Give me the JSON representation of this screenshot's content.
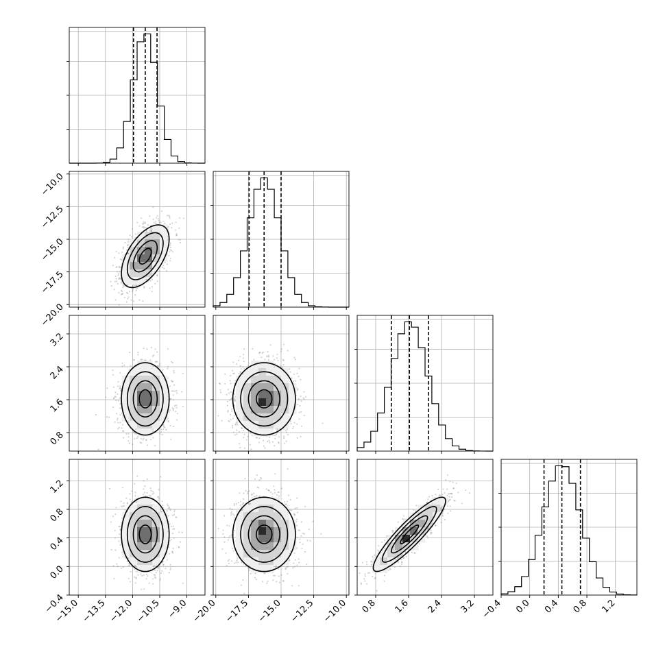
{
  "chart_data": {
    "type": "corner",
    "quantiles": [
      0.16,
      0.5,
      0.84
    ],
    "grid": true,
    "parameters": [
      {
        "mean": -11.3,
        "sd": 0.66,
        "range": [
          -15.5,
          -8.0
        ],
        "q": [
          -11.95,
          -11.3,
          -10.65
        ],
        "ticks": [
          "−15.0",
          "−13.5",
          "−12.0",
          "−10.5",
          "−9.0"
        ],
        "tick_values": [
          -15.0,
          -13.5,
          -12.0,
          -10.5,
          -9.0
        ]
      },
      {
        "mean": -16.3,
        "sd": 1.2,
        "range": [
          -20.2,
          -9.8
        ],
        "q": [
          -17.45,
          -16.3,
          -15.0
        ],
        "ticks": [
          "−20.0",
          "−17.5",
          "−15.0",
          "−12.5",
          "−10.0"
        ],
        "tick_values": [
          -20.0,
          -17.5,
          -15.0,
          -12.5,
          -10.0
        ]
      },
      {
        "mean": 1.62,
        "sd": 0.44,
        "range": [
          0.35,
          3.65
        ],
        "q": [
          1.18,
          1.62,
          2.08
        ],
        "ticks": [
          "0.8",
          "1.6",
          "2.4",
          "3.2"
        ],
        "tick_values": [
          0.8,
          1.6,
          2.4,
          3.2
        ]
      },
      {
        "mean": 0.45,
        "sd": 0.26,
        "range": [
          -0.4,
          1.5
        ],
        "q": [
          0.2,
          0.45,
          0.71
        ],
        "ticks": [
          "−0.4",
          "0.0",
          "0.4",
          "0.8",
          "1.2"
        ],
        "tick_values": [
          -0.4,
          0.0,
          0.4,
          0.8,
          1.2
        ]
      }
    ],
    "correlations": {
      "1-0": 0.55,
      "2-0": 0.0,
      "2-1": 0.0,
      "3-0": 0.0,
      "3-1": 0.0,
      "3-2": 0.9
    },
    "hist_bins": 20,
    "contour_levels_sigma": [
      0.5,
      1.0,
      1.5,
      2.0
    ],
    "colors": {
      "hist": "#000000",
      "contour": "#000000",
      "scatter": "#8a8a8a"
    }
  }
}
